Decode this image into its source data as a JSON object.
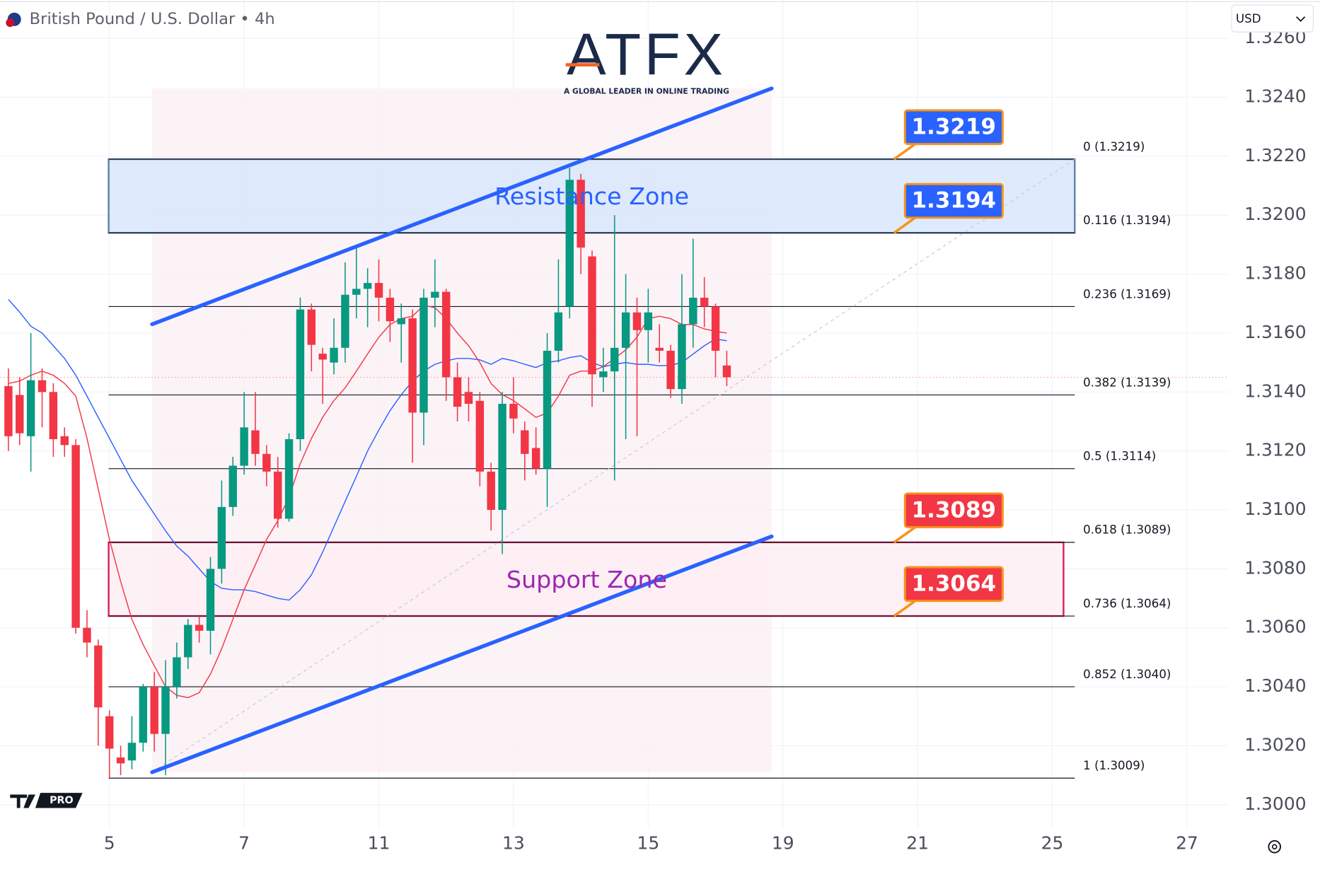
{
  "header": {
    "symbol": "British Pound / U.S. Dollar • 4h",
    "currency": "USD"
  },
  "logo": {
    "name": "ATFX",
    "tagline": "A GLOBAL LEADER IN ONLINE TRADING",
    "badge": "PRO"
  },
  "chart_data": {
    "type": "candlestick",
    "open": [
      1.3142,
      1.3139,
      1.3125,
      1.3144,
      1.314,
      1.3125,
      1.3122,
      1.306,
      1.3054,
      1.303,
      1.3016,
      1.3015,
      1.3021,
      1.304,
      1.3024,
      1.304,
      1.305,
      1.3061,
      1.3059,
      1.308,
      1.3101,
      1.3115,
      1.3127,
      1.3119,
      1.3113,
      1.3097,
      1.3124,
      1.3168,
      1.3153,
      1.315,
      1.3155,
      1.3173,
      1.3175,
      1.3177,
      1.3172,
      1.3163,
      1.3165,
      1.3133,
      1.3172,
      1.3174,
      1.3145,
      1.314,
      1.3137,
      1.3113,
      1.31,
      1.3136,
      1.3127,
      1.3121,
      1.3114,
      1.3154,
      1.3169,
      1.3212,
      1.3186,
      1.3145,
      1.3147,
      1.3155,
      1.3167,
      1.3161,
      1.3155,
      1.3154,
      1.3141,
      1.3163,
      1.3172,
      1.3169,
      1.3149
    ],
    "high": [
      1.3148,
      1.3145,
      1.316,
      1.3148,
      1.3143,
      1.3128,
      1.3124,
      1.3066,
      1.3056,
      1.3032,
      1.302,
      1.303,
      1.3041,
      1.3045,
      1.3049,
      1.3055,
      1.3063,
      1.3064,
      1.3084,
      1.311,
      1.3118,
      1.314,
      1.314,
      1.3122,
      1.3118,
      1.3126,
      1.3172,
      1.317,
      1.3155,
      1.3165,
      1.3184,
      1.319,
      1.3182,
      1.3185,
      1.3175,
      1.317,
      1.3168,
      1.3175,
      1.3185,
      1.3175,
      1.315,
      1.3145,
      1.314,
      1.3116,
      1.314,
      1.3145,
      1.313,
      1.3128,
      1.316,
      1.3185,
      1.3216,
      1.3214,
      1.3188,
      1.3155,
      1.32,
      1.318,
      1.3172,
      1.3175,
      1.3163,
      1.3156,
      1.318,
      1.3192,
      1.3179,
      1.317,
      1.3154
    ],
    "low": [
      1.312,
      1.3122,
      1.3113,
      1.3128,
      1.3118,
      1.3118,
      1.3058,
      1.305,
      1.302,
      1.3009,
      1.301,
      1.3012,
      1.3018,
      1.3018,
      1.301,
      1.3036,
      1.3046,
      1.3055,
      1.3051,
      1.3075,
      1.3098,
      1.3112,
      1.3115,
      1.3108,
      1.3094,
      1.3096,
      1.312,
      1.3147,
      1.3136,
      1.3146,
      1.315,
      1.3165,
      1.3162,
      1.3164,
      1.3157,
      1.315,
      1.3116,
      1.3122,
      1.3162,
      1.3137,
      1.313,
      1.313,
      1.3108,
      1.3093,
      1.3085,
      1.3126,
      1.311,
      1.3112,
      1.3101,
      1.315,
      1.3165,
      1.318,
      1.3135,
      1.314,
      1.311,
      1.3124,
      1.3125,
      1.315,
      1.315,
      1.3138,
      1.3136,
      1.3155,
      1.3162,
      1.3145,
      1.3142
    ],
    "close": [
      1.3125,
      1.3126,
      1.3144,
      1.314,
      1.3124,
      1.3122,
      1.306,
      1.3055,
      1.3033,
      1.3019,
      1.3014,
      1.3021,
      1.304,
      1.3024,
      1.304,
      1.305,
      1.3061,
      1.3059,
      1.308,
      1.3101,
      1.3115,
      1.3128,
      1.3119,
      1.3113,
      1.3097,
      1.3124,
      1.3168,
      1.3156,
      1.3151,
      1.3155,
      1.3173,
      1.3175,
      1.3177,
      1.3172,
      1.3164,
      1.3165,
      1.3133,
      1.3172,
      1.3174,
      1.3145,
      1.3135,
      1.3136,
      1.3113,
      1.31,
      1.3136,
      1.3131,
      1.3119,
      1.3114,
      1.3154,
      1.3167,
      1.3212,
      1.3189,
      1.3146,
      1.3147,
      1.3155,
      1.3167,
      1.3161,
      1.3167,
      1.3154,
      1.3141,
      1.3163,
      1.3172,
      1.3169,
      1.3154,
      1.3145
    ],
    "up_color": "#089981",
    "down_color": "#f23645",
    "moving_averages": [
      {
        "color": "#2962ff",
        "values": [
          1.31714,
          1.31671,
          1.31623,
          1.316,
          1.31557,
          1.31514,
          1.31457,
          1.31386,
          1.31314,
          1.31243,
          1.31171,
          1.311,
          1.31043,
          1.30986,
          1.30929,
          1.30877,
          1.30843,
          1.308,
          1.30757,
          1.30734,
          1.30729,
          1.30729,
          1.30723,
          1.30711,
          1.307,
          1.30694,
          1.30729,
          1.3078,
          1.30857,
          1.30943,
          1.31029,
          1.31114,
          1.312,
          1.31271,
          1.31337,
          1.31391,
          1.31437,
          1.31471,
          1.31494,
          1.31506,
          1.31514,
          1.31514,
          1.31509,
          1.31494,
          1.31514,
          1.31506,
          1.31494,
          1.31483,
          1.315,
          1.31506,
          1.31517,
          1.31523,
          1.315,
          1.31486,
          1.31494,
          1.315,
          1.31494,
          1.31494,
          1.31489,
          1.31491,
          1.315,
          1.31529,
          1.31557,
          1.3158,
          1.31574
        ]
      },
      {
        "color": "#f23645",
        "values": [
          1.31429,
          1.31437,
          1.31457,
          1.31471,
          1.31457,
          1.31429,
          1.31386,
          1.31243,
          1.31071,
          1.309,
          1.30757,
          1.30629,
          1.30543,
          1.30471,
          1.304,
          1.30371,
          1.30363,
          1.3038,
          1.30443,
          1.30529,
          1.30629,
          1.30729,
          1.30814,
          1.309,
          1.30963,
          1.31043,
          1.31157,
          1.31243,
          1.31314,
          1.31371,
          1.31414,
          1.31471,
          1.31529,
          1.31586,
          1.31629,
          1.31649,
          1.31657,
          1.31694,
          1.31686,
          1.31649,
          1.316,
          1.31557,
          1.315,
          1.31429,
          1.31391,
          1.31371,
          1.31343,
          1.31314,
          1.31329,
          1.31386,
          1.31457,
          1.31471,
          1.31471,
          1.31486,
          1.31514,
          1.31543,
          1.31586,
          1.31649,
          1.31657,
          1.31649,
          1.31629,
          1.31629,
          1.31614,
          1.31606,
          1.316
        ]
      }
    ],
    "xlim": [
      -0.75,
      108.75
    ],
    "xticks": [
      {
        "value": 9,
        "label": "5"
      },
      {
        "value": 21,
        "label": "7"
      },
      {
        "value": 33,
        "label": "11"
      },
      {
        "value": 45,
        "label": "13"
      },
      {
        "value": 57,
        "label": "15"
      },
      {
        "value": 69,
        "label": "19"
      },
      {
        "value": 81,
        "label": "21"
      },
      {
        "value": 93,
        "label": "25"
      },
      {
        "value": 105,
        "label": "27"
      }
    ],
    "ylim": [
      1.2992,
      1.3273
    ],
    "yticks": [
      {
        "value": 1.3,
        "label": "1.3000"
      },
      {
        "value": 1.302,
        "label": "1.3020"
      },
      {
        "value": 1.304,
        "label": "1.3040"
      },
      {
        "value": 1.306,
        "label": "1.3060"
      },
      {
        "value": 1.308,
        "label": "1.3080"
      },
      {
        "value": 1.31,
        "label": "1.3100"
      },
      {
        "value": 1.312,
        "label": "1.3120"
      },
      {
        "value": 1.314,
        "label": "1.3140"
      },
      {
        "value": 1.316,
        "label": "1.3160"
      },
      {
        "value": 1.318,
        "label": "1.3180"
      },
      {
        "value": 1.32,
        "label": "1.3200"
      },
      {
        "value": 1.322,
        "label": "1.3220"
      },
      {
        "value": 1.324,
        "label": "1.3240"
      },
      {
        "value": 1.326,
        "label": "1.3260"
      }
    ],
    "grid": true,
    "fib_levels": [
      {
        "value": 1.3219,
        "label": "0 (1.3219)"
      },
      {
        "value": 1.3194,
        "label": "0.116 (1.3194)"
      },
      {
        "value": 1.3169,
        "label": "0.236 (1.3169)"
      },
      {
        "value": 1.3139,
        "label": "0.382 (1.3139)"
      },
      {
        "value": 1.3114,
        "label": "0.5 (1.3114)"
      },
      {
        "value": 1.3089,
        "label": "0.618 (1.3089)"
      },
      {
        "value": 1.3064,
        "label": "0.736 (1.3064)"
      },
      {
        "value": 1.304,
        "label": "0.852 (1.3040)"
      },
      {
        "value": 1.3009,
        "label": "1 (1.3009)"
      }
    ],
    "fib_x": [
      8.93,
      95
    ],
    "zones": [
      {
        "label": "Resistance Zone",
        "range": [
          1.3194,
          1.3219
        ],
        "x": [
          8.93,
          95
        ],
        "fill": "#d6e6fb",
        "stroke": "#5a7fa8",
        "text_color": "#2962ff"
      },
      {
        "label": "Support Zone",
        "range": [
          1.3064,
          1.3089
        ],
        "x": [
          8.93,
          94
        ],
        "fill": "#fdeef3",
        "stroke": "#d81b60",
        "text_color": "#9c27b0"
      }
    ],
    "price_tags": [
      {
        "value": 1.3219,
        "color": "#2962ff"
      },
      {
        "value": 1.3194,
        "color": "#2962ff"
      },
      {
        "value": 1.3089,
        "color": "#f23645"
      },
      {
        "value": 1.3064,
        "color": "#f23645"
      }
    ],
    "channel": {
      "color": "#2962ff",
      "upper": {
        "x": [
          12.8,
          68
        ],
        "y": [
          1.3163,
          1.3243
        ]
      },
      "lower": {
        "x": [
          12.8,
          68
        ],
        "y": [
          1.3011,
          1.3091
        ]
      }
    },
    "trend_line": {
      "x": [
        12.8,
        95
      ],
      "y": [
        1.3011,
        1.3219
      ]
    }
  }
}
